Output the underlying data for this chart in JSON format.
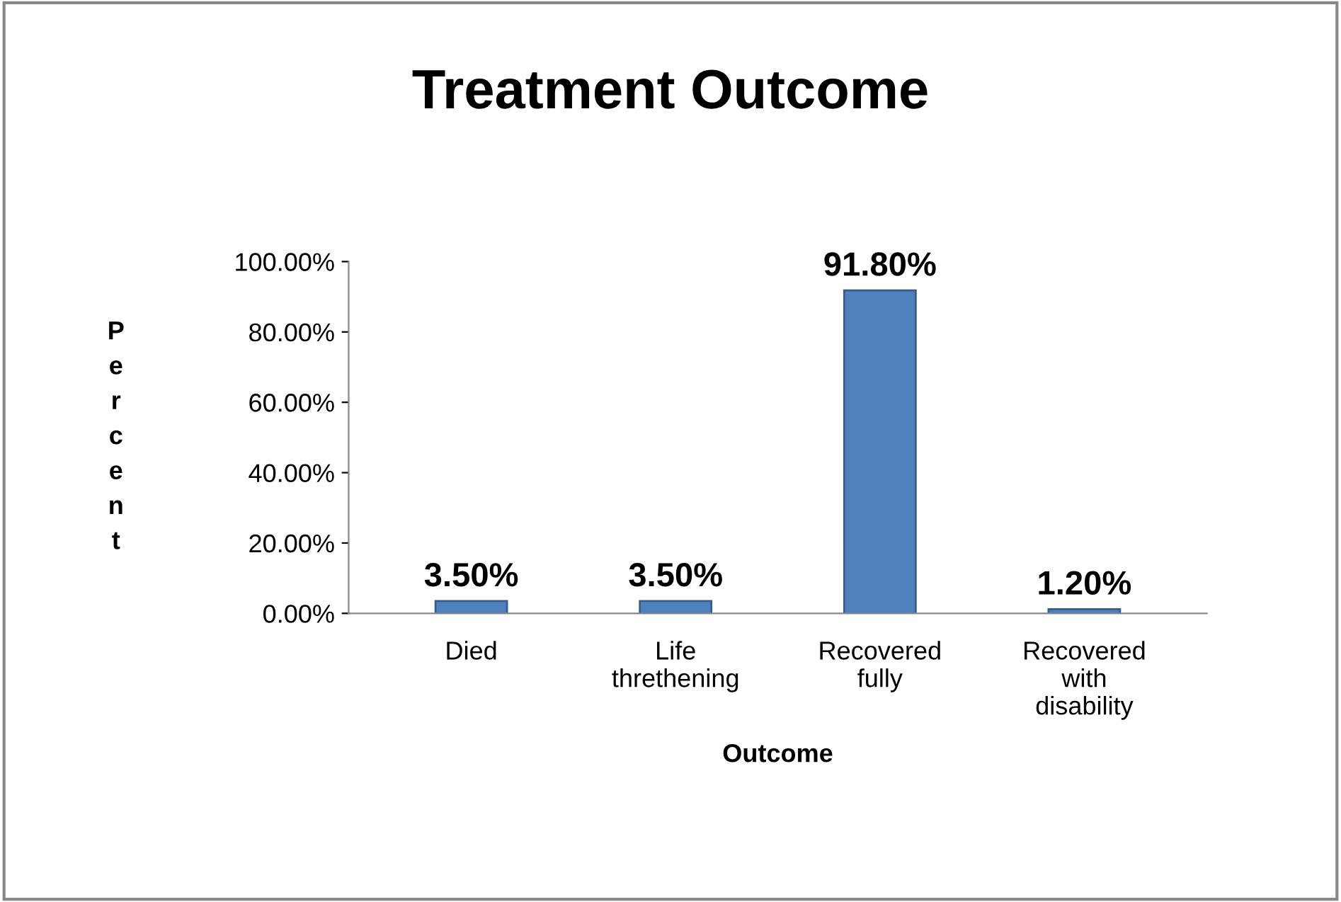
{
  "chart_data": {
    "type": "bar",
    "title": "Treatment Outcome",
    "xlabel": "Outcome",
    "ylabel": "Percent",
    "categories": [
      "Died",
      "Life\nthrethening",
      "Recovered\nfully",
      "Recovered\nwith\ndisability"
    ],
    "values": [
      3.5,
      3.5,
      91.8,
      1.2
    ],
    "value_labels": [
      "3.50%",
      "3.50%",
      "91.80%",
      "1.20%"
    ],
    "color": "#4f81bd",
    "ylim": [
      0,
      100
    ],
    "yticks": [
      {
        "value": 0,
        "label": "0.00%"
      },
      {
        "value": 20,
        "label": "20.00%"
      },
      {
        "value": 40,
        "label": "40.00%"
      },
      {
        "value": 60,
        "label": "60.00%"
      },
      {
        "value": 80,
        "label": "80.00%"
      },
      {
        "value": 100,
        "label": "100.00%"
      }
    ],
    "grid": false,
    "legend": false
  }
}
